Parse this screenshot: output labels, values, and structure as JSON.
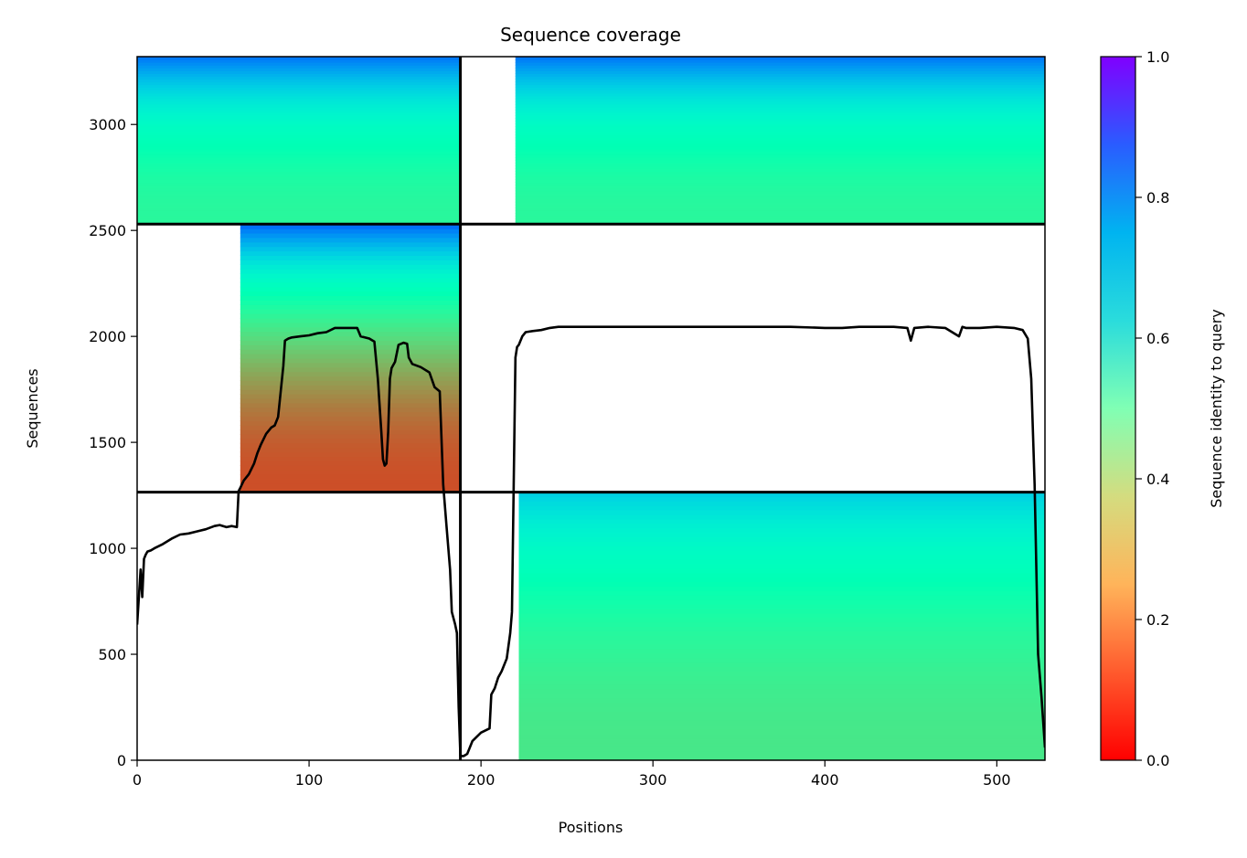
{
  "chart_data": {
    "type": "heatmap",
    "title": "Sequence coverage",
    "xlabel": "Positions",
    "ylabel": "Sequences",
    "xlim": [
      0,
      528
    ],
    "ylim": [
      0,
      3320
    ],
    "xticks": [
      0,
      100,
      200,
      300,
      400,
      500
    ],
    "yticks": [
      0,
      500,
      1000,
      1500,
      2000,
      2500,
      3000
    ],
    "colorbar": {
      "label": "Sequence identity to query",
      "range": [
        0,
        1
      ],
      "ticks": [
        0.0,
        0.2,
        0.4,
        0.6,
        0.8,
        1.0
      ],
      "tick_labels": [
        "0.0",
        "0.2",
        "0.4",
        "0.6",
        "0.8",
        "1.0"
      ],
      "colormap": "rainbow_r"
    },
    "block_dividers": {
      "vertical_x": [
        188
      ],
      "horizontal_y": [
        1265,
        2530
      ]
    },
    "coverage_blocks": [
      {
        "x": [
          0,
          188
        ],
        "y": [
          2530,
          3320
        ],
        "identity_top": 0.85,
        "identity_bottom": 0.42
      },
      {
        "x": [
          220,
          528
        ],
        "y": [
          2530,
          3320
        ],
        "identity_top": 0.85,
        "identity_bottom": 0.42
      },
      {
        "x": [
          60,
          188
        ],
        "y": [
          1265,
          2530
        ],
        "identity_top": 0.87,
        "identity_bottom": 0.1
      },
      {
        "x": [
          222,
          528
        ],
        "y": [
          0,
          1265
        ],
        "identity_top": 0.7,
        "identity_bottom": 0.36
      }
    ],
    "coverage_line": {
      "x": [
        0,
        2,
        3,
        4,
        5,
        6,
        8,
        10,
        15,
        20,
        25,
        28,
        30,
        35,
        40,
        45,
        48,
        50,
        52,
        55,
        58,
        59,
        60,
        62,
        65,
        68,
        70,
        72,
        75,
        78,
        80,
        82,
        83,
        85,
        86,
        87,
        88,
        90,
        95,
        100,
        105,
        110,
        115,
        120,
        125,
        128,
        130,
        135,
        138,
        140,
        142,
        143,
        144,
        145,
        146,
        147,
        148,
        150,
        152,
        155,
        157,
        158,
        160,
        165,
        170,
        173,
        176,
        178,
        180,
        182,
        183,
        185,
        186,
        187,
        188,
        190,
        192,
        195,
        200,
        205,
        206,
        208,
        210,
        212,
        215,
        217,
        218,
        219,
        220,
        221,
        222,
        224,
        226,
        230,
        235,
        240,
        245,
        250,
        260,
        280,
        300,
        320,
        340,
        360,
        380,
        400,
        410,
        420,
        440,
        448,
        450,
        452,
        460,
        470,
        478,
        480,
        482,
        490,
        500,
        510,
        515,
        518,
        520,
        522,
        524,
        526,
        528
      ],
      "values": [
        640,
        900,
        770,
        950,
        970,
        985,
        990,
        1000,
        1020,
        1045,
        1065,
        1068,
        1070,
        1080,
        1090,
        1105,
        1110,
        1105,
        1100,
        1105,
        1100,
        1270,
        1285,
        1320,
        1350,
        1400,
        1450,
        1490,
        1540,
        1570,
        1580,
        1620,
        1700,
        1860,
        1980,
        1985,
        1990,
        1995,
        2000,
        2005,
        2015,
        2020,
        2040,
        2040,
        2040,
        2040,
        2000,
        1990,
        1975,
        1800,
        1550,
        1420,
        1390,
        1400,
        1550,
        1800,
        1850,
        1880,
        1960,
        1970,
        1965,
        1900,
        1870,
        1855,
        1830,
        1760,
        1740,
        1300,
        1100,
        900,
        700,
        640,
        600,
        250,
        20,
        20,
        30,
        90,
        130,
        150,
        310,
        340,
        390,
        420,
        480,
        600,
        700,
        1300,
        1900,
        1950,
        1960,
        2000,
        2020,
        2025,
        2030,
        2040,
        2045,
        2045,
        2045,
        2045,
        2045,
        2045,
        2045,
        2045,
        2045,
        2040,
        2040,
        2045,
        2045,
        2040,
        1980,
        2040,
        2045,
        2040,
        2000,
        2045,
        2040,
        2040,
        2045,
        2040,
        2030,
        1990,
        1800,
        1300,
        500,
        300,
        60
      ]
    }
  }
}
